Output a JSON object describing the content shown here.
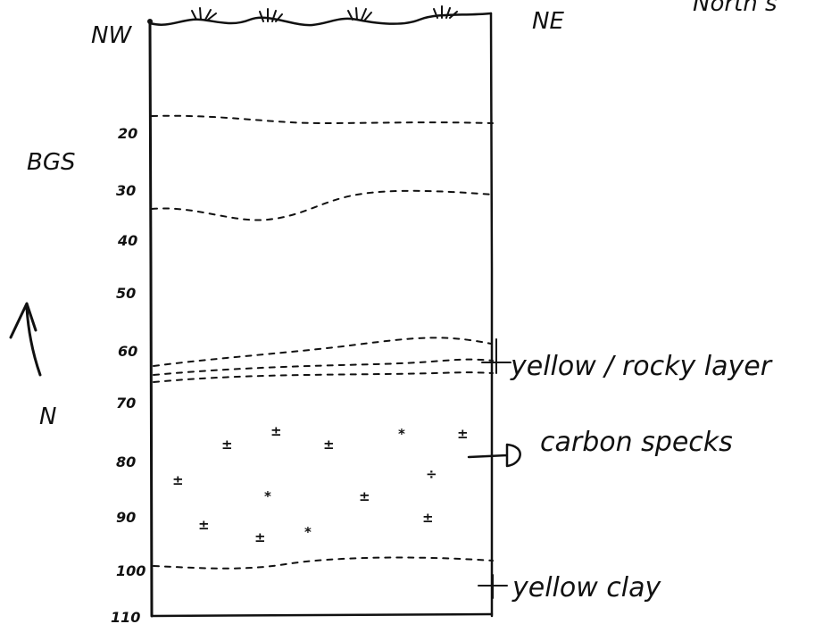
{
  "corner_labels": {
    "left": "NW",
    "right": "NE",
    "top_right_partial": "North s"
  },
  "reference_label": "BGS",
  "north_arrow_label": "N",
  "depth_labels": [
    "20",
    "30",
    "40",
    "50",
    "60",
    "70",
    "80",
    "90",
    "100",
    "110"
  ],
  "annotations": {
    "rocky_layer": "yellow / rocky layer",
    "carbon": "carbon specks",
    "clay": "yellow clay"
  },
  "speck_glyphs": [
    "±",
    "±",
    "±",
    "*",
    "±",
    "±",
    "÷",
    "*",
    "±",
    "±",
    "±",
    "*",
    "±",
    "*"
  ],
  "colors": {
    "ink": "#111111",
    "background": "#ffffff"
  }
}
